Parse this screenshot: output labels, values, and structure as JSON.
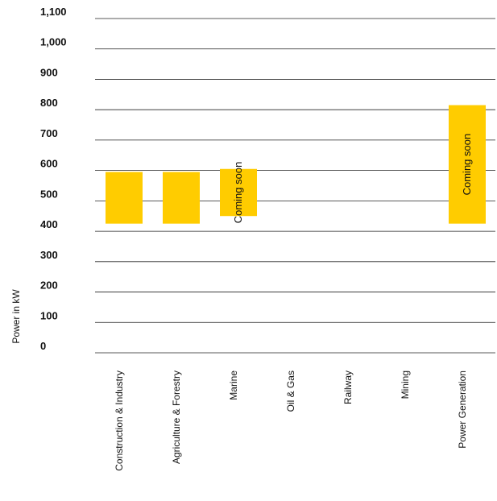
{
  "chart_data": {
    "type": "bar",
    "title": "",
    "xlabel": "",
    "ylabel": "Power in kW",
    "ylim": [
      0,
      1100
    ],
    "yticks": [
      "0",
      "100",
      "200",
      "300",
      "400",
      "500",
      "600",
      "700",
      "800",
      "900",
      "1,000",
      "1,100"
    ],
    "ytick_values": [
      0,
      100,
      200,
      300,
      400,
      500,
      600,
      700,
      800,
      900,
      1000,
      1100
    ],
    "grid": true,
    "bar_color": "#FFCC00",
    "categories": [
      "Construction & Industry",
      "Agriculture & Forestry",
      "Marine",
      "Oil & Gas",
      "Railway",
      "Mining",
      "Power Generation"
    ],
    "ranges": [
      {
        "low": 425,
        "high": 595,
        "note": ""
      },
      {
        "low": 425,
        "high": 595,
        "note": ""
      },
      {
        "low": 450,
        "high": 605,
        "note": "Coming soon"
      },
      null,
      null,
      null,
      {
        "low": 425,
        "high": 815,
        "note": "Coming soon"
      }
    ]
  }
}
